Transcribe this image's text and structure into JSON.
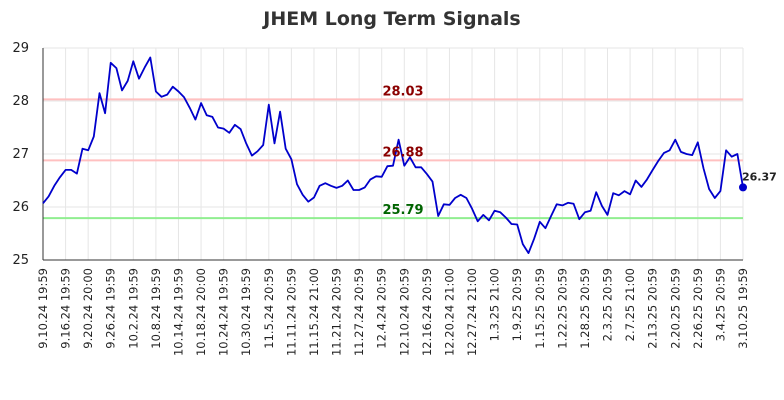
{
  "chart_data": {
    "type": "line",
    "title": "JHEM Long Term Signals",
    "xlabel": "",
    "ylabel": "",
    "ylim": [
      25,
      29
    ],
    "yticks": [
      "25",
      "26",
      "27",
      "28",
      "29"
    ],
    "grid": true,
    "x_tick_labels": [
      "9.10.24 19:59",
      "9.16.24 19:59",
      "9.20.24 20:00",
      "9.26.24 19:59",
      "10.2.24 19:59",
      "10.8.24 19:59",
      "10.14.24 19:59",
      "10.18.24 20:00",
      "10.24.24 19:59",
      "10.30.24 19:59",
      "11.5.24 20:59",
      "11.11.24 20:59",
      "11.15.24 21:00",
      "11.21.24 20:59",
      "11.27.24 20:59",
      "12.4.24 20:59",
      "12.10.24 20:59",
      "12.16.24 20:59",
      "12.20.24 21:00",
      "12.27.24 21:00",
      "1.3.25 21:00",
      "1.9.25 20:59",
      "1.15.25 20:59",
      "1.22.25 20:59",
      "1.28.25 20:59",
      "2.3.25 20:59",
      "2.7.25 21:00",
      "2.13.25 20:59",
      "2.20.25 20:59",
      "2.26.25 20:59",
      "3.4.25 20:59",
      "3.10.25 19:59"
    ],
    "series": [
      {
        "color": "#0000cc",
        "values": [
          26.07,
          26.2,
          26.4,
          26.56,
          26.7,
          26.7,
          26.63,
          27.1,
          27.07,
          27.33,
          28.15,
          27.77,
          28.72,
          28.62,
          28.2,
          28.38,
          28.75,
          28.42,
          28.63,
          28.82,
          28.18,
          28.08,
          28.12,
          28.27,
          28.18,
          28.07,
          27.87,
          27.65,
          27.96,
          27.73,
          27.7,
          27.5,
          27.48,
          27.4,
          27.55,
          27.47,
          27.2,
          26.97,
          27.05,
          27.17,
          27.93,
          27.2,
          27.8,
          27.1,
          26.9,
          26.43,
          26.23,
          26.1,
          26.18,
          26.4,
          26.45,
          26.4,
          26.36,
          26.4,
          26.5,
          26.32,
          26.32,
          26.37,
          26.52,
          26.58,
          26.57,
          26.77,
          26.78,
          27.27,
          26.78,
          26.94,
          26.75,
          26.75,
          26.62,
          26.48,
          25.83,
          26.05,
          26.04,
          26.17,
          26.23,
          26.17,
          25.97,
          25.73,
          25.85,
          25.75,
          25.93,
          25.9,
          25.8,
          25.68,
          25.67,
          25.3,
          25.13,
          25.4,
          25.72,
          25.6,
          25.83,
          26.05,
          26.03,
          26.08,
          26.06,
          25.77,
          25.9,
          25.93,
          26.28,
          26.02,
          25.85,
          26.26,
          26.22,
          26.3,
          26.24,
          26.5,
          26.38,
          26.52,
          26.7,
          26.87,
          27.02,
          27.07,
          27.27,
          27.04,
          27.0,
          26.98,
          27.22,
          26.73,
          26.34,
          26.17,
          26.3,
          27.07,
          26.95,
          27.0,
          26.37
        ]
      }
    ],
    "reference_lines": [
      {
        "value": 28.03,
        "label": "28.03",
        "line_color": "#ffc0c0",
        "text_color": "#8b0000"
      },
      {
        "value": 26.88,
        "label": "26.88",
        "line_color": "#ffc0c0",
        "text_color": "#8b0000"
      },
      {
        "value": 25.79,
        "label": "25.79",
        "line_color": "#90ee90",
        "text_color": "#006400"
      }
    ],
    "last_value": {
      "value": 26.37,
      "label": "26.37"
    }
  }
}
